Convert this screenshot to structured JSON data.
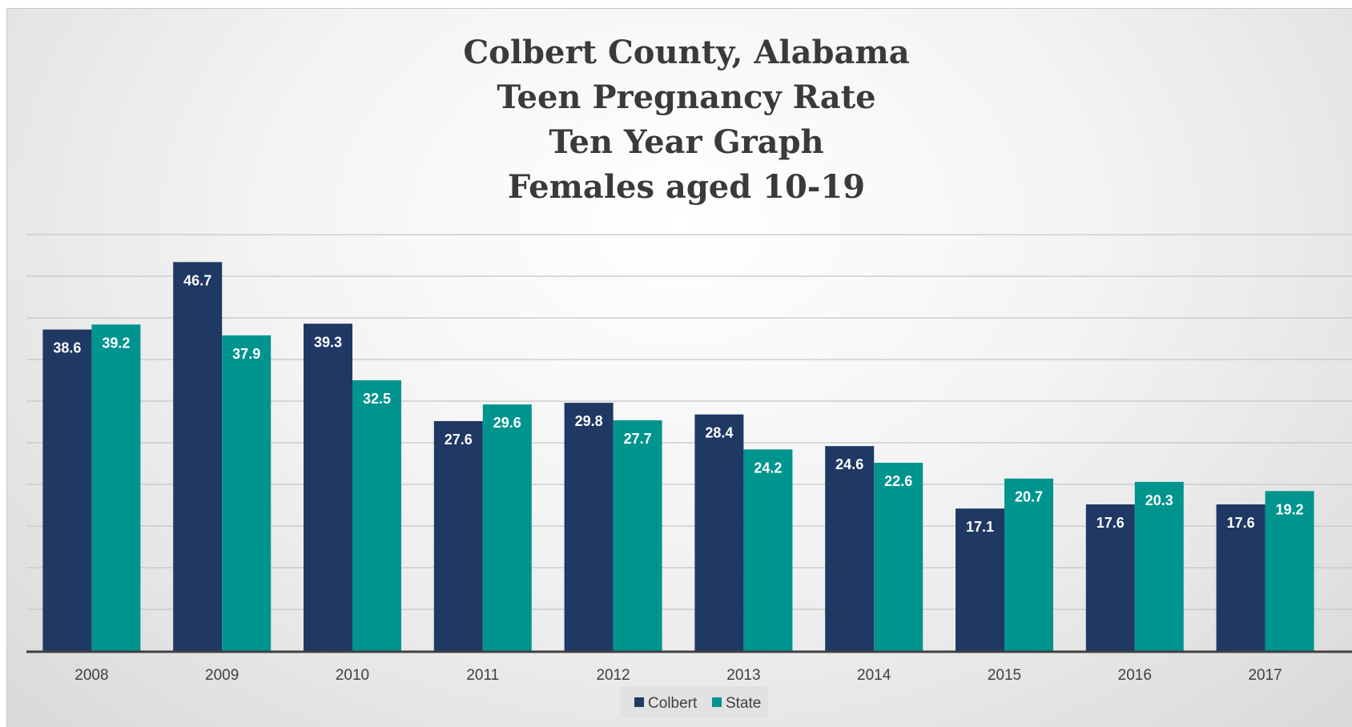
{
  "colors": {
    "colbert": "#203864",
    "state": "#00948F",
    "gridline": "#c6c6c6",
    "axis": "#404040"
  },
  "chart_data": {
    "type": "bar",
    "title": [
      "Colbert County, Alabama",
      "Teen Pregnancy Rate",
      "Ten Year Graph",
      "Females aged 10-19"
    ],
    "xlabel": "",
    "ylabel": "",
    "categories": [
      "2008",
      "2009",
      "2010",
      "2011",
      "2012",
      "2013",
      "2014",
      "2015",
      "2016",
      "2017"
    ],
    "series": [
      {
        "name": "Colbert",
        "color": "#203864",
        "values": [
          38.6,
          46.7,
          39.3,
          27.6,
          29.8,
          28.4,
          24.6,
          17.1,
          17.6,
          17.6
        ]
      },
      {
        "name": "State",
        "color": "#00948F",
        "values": [
          39.2,
          37.9,
          32.5,
          29.6,
          27.7,
          24.2,
          22.6,
          20.7,
          20.3,
          19.2
        ]
      }
    ],
    "ylim": [
      0,
      50
    ],
    "y_gridline_step": 5,
    "y_tick_labels_shown": false,
    "grid": true,
    "data_labels": true,
    "legend_position": "bottom"
  }
}
